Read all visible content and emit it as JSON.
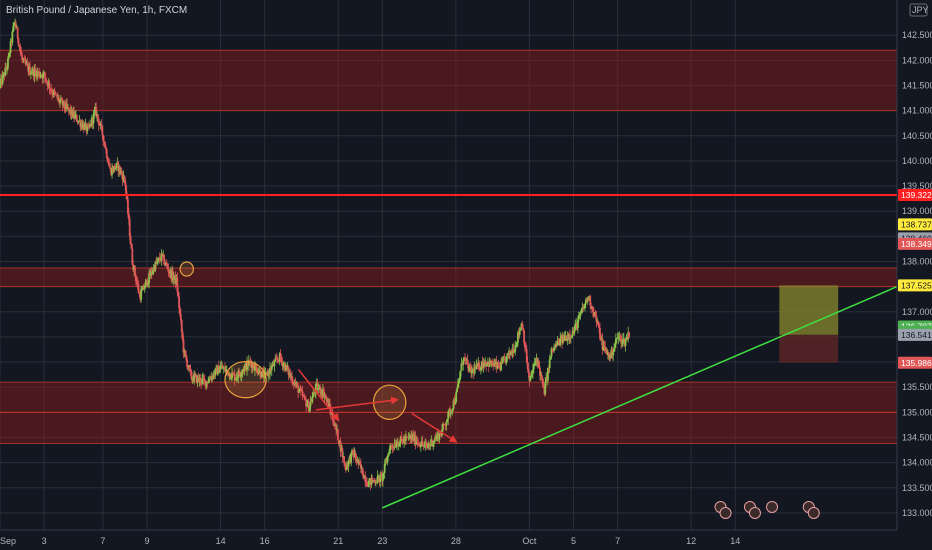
{
  "title": "British Pound / Japanese Yen, 1h, FXCM",
  "currency": "JPY",
  "colors": {
    "background": "#131722",
    "grid": "#2a2e39",
    "candle_up": "#8bc34a",
    "candle_down": "#e05757",
    "zone_fill": "#8b1c1c",
    "zone_line": "#c0392b",
    "resistance_line": "#ff1f1f",
    "trend_line": "#3fe03f",
    "ellipse": "#e8a33d",
    "arrow": "#e53935",
    "target_box": "#8a8a2e",
    "stop_box": "#5a2626"
  },
  "chart_data": {
    "type": "candlestick",
    "xlim": [
      0,
      61
    ],
    "ylim": [
      132.66,
      143.2
    ],
    "x_ticks": [
      {
        "x": 0,
        "label": "Sep"
      },
      {
        "x": 3,
        "label": "3"
      },
      {
        "x": 7,
        "label": "7"
      },
      {
        "x": 10,
        "label": "9"
      },
      {
        "x": 15,
        "label": "14"
      },
      {
        "x": 18,
        "label": "16"
      },
      {
        "x": 23,
        "label": "21"
      },
      {
        "x": 26,
        "label": "23"
      },
      {
        "x": 31,
        "label": "28"
      },
      {
        "x": 36,
        "label": "Oct"
      },
      {
        "x": 39,
        "label": "5"
      },
      {
        "x": 42,
        "label": "7"
      },
      {
        "x": 47,
        "label": "12"
      },
      {
        "x": 50,
        "label": "14"
      }
    ],
    "y_ticks": [
      143.0,
      142.5,
      142.0,
      141.5,
      141.0,
      140.5,
      140.0,
      139.5,
      139.0,
      138.5,
      138.0,
      137.5,
      137.0,
      136.5,
      136.0,
      135.5,
      135.0,
      134.5,
      134.0,
      133.5,
      133.0
    ],
    "y_tick_labels": [
      "142.500",
      "142.000",
      "141.500",
      "141.000",
      "140.500",
      "140.000",
      "139.500",
      "139.000",
      "138.500",
      "138.000",
      "137.500",
      "137.000",
      "136.500",
      "136.000",
      "135.500",
      "135.000",
      "134.500",
      "134.000",
      "133.500",
      "133.000"
    ],
    "y_tick_values": [
      142.5,
      142.0,
      141.5,
      141.0,
      140.5,
      140.0,
      139.5,
      139.0,
      138.5,
      138.0,
      137.5,
      137.0,
      136.5,
      136.0,
      135.5,
      135.0,
      134.5,
      134.0,
      133.5,
      133.0
    ],
    "price_path": [
      [
        0.0,
        141.5
      ],
      [
        0.5,
        141.9
      ],
      [
        1.0,
        142.8
      ],
      [
        1.5,
        142.0
      ],
      [
        2.0,
        141.8
      ],
      [
        3.0,
        141.7
      ],
      [
        3.5,
        141.4
      ],
      [
        4.0,
        141.2
      ],
      [
        5.0,
        140.9
      ],
      [
        6.0,
        140.6
      ],
      [
        6.5,
        141.0
      ],
      [
        7.0,
        140.5
      ],
      [
        7.5,
        139.8
      ],
      [
        8.0,
        139.9
      ],
      [
        8.5,
        139.6
      ],
      [
        9.0,
        138.0
      ],
      [
        9.5,
        137.3
      ],
      [
        10.0,
        137.6
      ],
      [
        10.5,
        137.9
      ],
      [
        11.0,
        138.1
      ],
      [
        11.5,
        137.8
      ],
      [
        12.0,
        137.6
      ],
      [
        12.5,
        136.2
      ],
      [
        13.0,
        135.7
      ],
      [
        14.0,
        135.6
      ],
      [
        15.0,
        135.9
      ],
      [
        16.0,
        135.7
      ],
      [
        17.0,
        136.0
      ],
      [
        18.0,
        135.7
      ],
      [
        19.0,
        136.1
      ],
      [
        20.0,
        135.6
      ],
      [
        21.0,
        135.1
      ],
      [
        21.5,
        135.5
      ],
      [
        22.0,
        135.4
      ],
      [
        22.5,
        135.0
      ],
      [
        23.0,
        134.5
      ],
      [
        23.5,
        133.9
      ],
      [
        24.0,
        134.2
      ],
      [
        25.0,
        133.6
      ],
      [
        26.0,
        133.7
      ],
      [
        26.5,
        134.3
      ],
      [
        27.0,
        134.4
      ],
      [
        28.0,
        134.5
      ],
      [
        29.0,
        134.3
      ],
      [
        30.0,
        134.6
      ],
      [
        31.0,
        135.3
      ],
      [
        31.5,
        136.1
      ],
      [
        32.0,
        135.8
      ],
      [
        33.0,
        136.0
      ],
      [
        34.0,
        135.9
      ],
      [
        35.0,
        136.3
      ],
      [
        35.5,
        136.8
      ],
      [
        36.0,
        135.6
      ],
      [
        36.5,
        136.1
      ],
      [
        37.0,
        135.4
      ],
      [
        37.5,
        136.2
      ],
      [
        38.0,
        136.4
      ],
      [
        39.0,
        136.6
      ],
      [
        40.0,
        137.3
      ],
      [
        40.5,
        136.9
      ],
      [
        41.0,
        136.3
      ],
      [
        41.5,
        136.1
      ],
      [
        42.0,
        136.5
      ],
      [
        42.5,
        136.4
      ],
      [
        42.8,
        136.6
      ]
    ],
    "horizontal_zones": [
      {
        "from": 141.0,
        "to": 142.2
      },
      {
        "from": 137.5,
        "to": 137.87
      },
      {
        "from": 135.0,
        "to": 135.6
      },
      {
        "from": 134.38,
        "to": 135.0
      }
    ],
    "resistance_line": 139.322,
    "trend_line": {
      "from": [
        26.0,
        133.1
      ],
      "to": [
        61.0,
        137.5
      ]
    },
    "ellipses": [
      {
        "x": 12.7,
        "y": 137.85,
        "rx": 0.45,
        "ry": 0.14
      },
      {
        "x": 16.7,
        "y": 135.65,
        "rx": 1.4,
        "ry": 0.36
      },
      {
        "x": 26.5,
        "y": 135.2,
        "rx": 1.1,
        "ry": 0.34
      }
    ],
    "arrows": [
      {
        "from": [
          20.3,
          135.85
        ],
        "to": [
          23.0,
          134.85
        ]
      },
      {
        "from": [
          21.5,
          135.05
        ],
        "to": [
          27.0,
          135.25
        ]
      },
      {
        "from": [
          28.0,
          134.98
        ],
        "to": [
          31.0,
          134.42
        ]
      }
    ],
    "position_box": {
      "x0": 53.0,
      "x1": 57.0,
      "top": 137.525,
      "mid": 136.541,
      "bottom": 135.986
    }
  },
  "price_labels": [
    {
      "value": 139.322,
      "label": "139.322",
      "bg": "#ff1f1f",
      "fg": "#ffffff"
    },
    {
      "value": 138.737,
      "label": "138.737",
      "bg": "#ffeb3b",
      "fg": "#131722"
    },
    {
      "value": 138.46,
      "label": "138.460",
      "bg": "#9aa1ad",
      "fg": "#131722"
    },
    {
      "value": 138.349,
      "label": "138.349",
      "bg": "#e05757",
      "fg": "#ffffff"
    },
    {
      "value": 137.525,
      "label": "137.525",
      "bg": "#ffeb3b",
      "fg": "#131722"
    },
    {
      "value": 136.707,
      "label": "136.707",
      "bg": "#4caf50",
      "fg": "#ffffff"
    },
    {
      "value": 136.6,
      "label": "02:04",
      "bg": "#4caf50",
      "fg": "#ffffff"
    },
    {
      "value": 136.541,
      "label": "136.541",
      "bg": "#9aa1ad",
      "fg": "#131722"
    },
    {
      "value": 135.986,
      "label": "135.986",
      "bg": "#e05757",
      "fg": "#ffffff"
    }
  ],
  "event_icons": [
    {
      "x": 49.0,
      "count": 2
    },
    {
      "x": 51.0,
      "count": 2
    },
    {
      "x": 52.5,
      "count": 1
    },
    {
      "x": 55.0,
      "count": 2
    }
  ]
}
